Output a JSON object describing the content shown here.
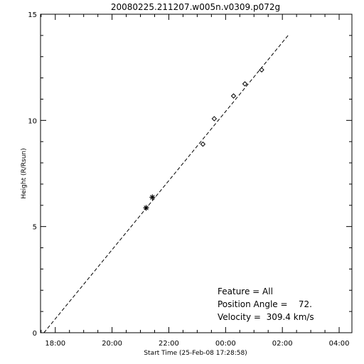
{
  "chart_data": {
    "type": "scatter",
    "title": "20080225.211207.w005n.v0309.p072g",
    "xlabel": "Start Time (25-Feb-08 17:28:58)",
    "ylabel": "Height (R/Rsun)",
    "x_axis_format": "time-of-day",
    "x_tick_labels": [
      "18:00",
      "20:00",
      "22:00",
      "00:00",
      "02:00",
      "04:00"
    ],
    "x_ticks_hours": [
      18,
      20,
      22,
      24,
      26,
      28
    ],
    "xlim_hours": [
      17.48,
      28.45
    ],
    "ylim": [
      0,
      15
    ],
    "y_ticks": [
      0,
      5,
      10,
      15
    ],
    "grid": false,
    "series": [
      {
        "marker": "asterisk",
        "points": [
          {
            "time": "21:12",
            "t_hours": 21.2,
            "height": 5.88
          },
          {
            "time": "21:25",
            "t_hours": 21.42,
            "height": 6.38
          }
        ]
      },
      {
        "marker": "diamond",
        "points": [
          {
            "time": "23:12",
            "t_hours": 23.2,
            "height": 8.88
          },
          {
            "time": "23:36",
            "t_hours": 23.6,
            "height": 10.08
          },
          {
            "time": "00:17",
            "t_hours": 24.28,
            "height": 11.15
          },
          {
            "time": "00:41",
            "t_hours": 24.68,
            "height": 11.72
          },
          {
            "time": "01:16",
            "t_hours": 25.27,
            "height": 12.38
          }
        ]
      }
    ],
    "fit_line": {
      "style": "dashed",
      "start": {
        "t_hours": 17.6,
        "height": 0
      },
      "end": {
        "t_hours": 26.2,
        "height": 14.0
      }
    },
    "annotations": {
      "feature": "Feature = All",
      "position_angle": "Position Angle =    72.",
      "velocity": "Velocity =  309.4 km/s"
    }
  }
}
